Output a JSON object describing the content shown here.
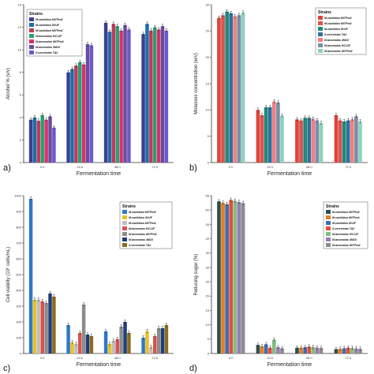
{
  "chart_data": [
    {
      "panel_label": "a)",
      "type": "bar",
      "xlabel": "Fermentation time",
      "ylabel": "Alcohol % (v/v)",
      "ylim": [
        0,
        14
      ],
      "yticks": [
        0,
        2,
        4,
        6,
        8,
        10,
        12,
        14
      ],
      "categories": [
        "0 h",
        "24 h",
        "48 h",
        "72 h"
      ],
      "legend_title": "Strains",
      "legend_position": "top-left",
      "series": [
        {
          "name": "M.caribbica MiTPm3",
          "color": "#3c3f8f",
          "values": [
            3.8,
            8.0,
            12.4,
            11.4
          ]
        },
        {
          "name": "M.caribbica SHJF",
          "color": "#1b6ea8",
          "values": [
            4.0,
            8.3,
            11.6,
            12.3
          ]
        },
        {
          "name": "M.caribbica MiTPm4",
          "color": "#c0395a",
          "values": [
            3.7,
            8.6,
            12.3,
            11.7
          ]
        },
        {
          "name": "W.anomalus HCJJF",
          "color": "#2e9e6e",
          "values": [
            4.2,
            8.9,
            12.1,
            12.0
          ]
        },
        {
          "name": "W.anomalus MiTPm2",
          "color": "#d6336c",
          "values": [
            3.8,
            8.7,
            11.7,
            11.8
          ]
        },
        {
          "name": "W.anomalus 4M10",
          "color": "#6a4c9c",
          "values": [
            4.1,
            10.5,
            12.2,
            12.1
          ]
        },
        {
          "name": "S.cerevisiae TA2",
          "color": "#6a5acd",
          "values": [
            3.1,
            10.4,
            11.8,
            11.7
          ]
        }
      ]
    },
    {
      "panel_label": "b)",
      "type": "bar",
      "xlabel": "Fermentation time",
      "ylabel": "Molasses concentration (w/v)",
      "ylim": [
        0,
        30
      ],
      "yticks": [
        0,
        5,
        10,
        15,
        20,
        25,
        30
      ],
      "categories": [
        "0 h",
        "24 h",
        "48 h",
        "72 h"
      ],
      "legend_title": "Strains",
      "legend_position": "top-right",
      "series": [
        {
          "name": "M.caribbica MiTPm3",
          "color": "#e0453a",
          "values": [
            27.5,
            10.0,
            8.2,
            9.0
          ]
        },
        {
          "name": "M.caribbica MiTPm4",
          "color": "#d9534f",
          "values": [
            28.0,
            9.0,
            8.0,
            8.0
          ]
        },
        {
          "name": "M.caribbica SHJF",
          "color": "#1f8a7a",
          "values": [
            28.7,
            10.5,
            8.5,
            7.8
          ]
        },
        {
          "name": "S.cerevisiae TA2",
          "color": "#2f6f9f",
          "values": [
            28.4,
            10.5,
            8.5,
            8.0
          ]
        },
        {
          "name": "W.anomalus 4M10",
          "color": "#f08080",
          "values": [
            27.8,
            11.6,
            8.3,
            8.2
          ]
        },
        {
          "name": "W.anomalus HCJJF",
          "color": "#7a8fa8",
          "values": [
            28.0,
            11.4,
            8.0,
            8.8
          ]
        },
        {
          "name": "W.anomalus MiTPm2",
          "color": "#8fd1c2",
          "values": [
            28.5,
            8.9,
            7.5,
            7.8
          ]
        }
      ]
    },
    {
      "panel_label": "c)",
      "type": "bar",
      "xlabel": "Fermentation time",
      "ylabel": "Cell viability (10⁶ cells/mL)",
      "ylim": [
        0,
        1000
      ],
      "yticks": [
        0,
        100,
        200,
        300,
        400,
        500,
        600,
        700,
        800,
        900,
        1000
      ],
      "categories": [
        "0 h",
        "24 h",
        "48 h",
        "72 h"
      ],
      "legend_title": "Strains",
      "legend_position": "top-right",
      "series": [
        {
          "name": "M.caribbica MiTPm3",
          "color": "#2e78c7",
          "values": [
            980,
            180,
            140,
            100
          ]
        },
        {
          "name": "M.caribbica SHJF",
          "color": "#e6c229",
          "values": [
            340,
            70,
            60,
            140
          ]
        },
        {
          "name": "M.caribbica MiTPm4",
          "color": "#bfbfbf",
          "values": [
            340,
            60,
            80,
            40
          ]
        },
        {
          "name": "W.anomalus HCJJF",
          "color": "#d9534f",
          "values": [
            330,
            130,
            90,
            110
          ]
        },
        {
          "name": "W.anomalus MiTPm2",
          "color": "#8c8c8c",
          "values": [
            320,
            310,
            170,
            160
          ]
        },
        {
          "name": "W.anomalus 4M10",
          "color": "#1f3d7a",
          "values": [
            380,
            120,
            200,
            160
          ]
        },
        {
          "name": "S.cerevisiae TA2",
          "color": "#8a6d1e",
          "values": [
            360,
            110,
            130,
            180
          ]
        }
      ]
    },
    {
      "panel_label": "d)",
      "type": "bar",
      "xlabel": "Fermentation time",
      "ylabel": "Reducing sugar (%)",
      "ylim": [
        0,
        55
      ],
      "yticks": [
        0,
        5,
        10,
        15,
        20,
        25,
        30,
        35,
        40,
        45,
        50,
        55
      ],
      "categories": [
        "0 h",
        "24 h",
        "48 h",
        "72 h"
      ],
      "legend_title": "Strains",
      "legend_position": "top-right",
      "series": [
        {
          "name": "M.caribbica MiTPm3",
          "color": "#2f4f4f",
          "values": [
            53.0,
            3.0,
            2.0,
            1.5
          ]
        },
        {
          "name": "M.caribbica MiTPm4",
          "color": "#e67e22",
          "values": [
            52.5,
            2.5,
            2.0,
            1.6
          ]
        },
        {
          "name": "M.caribbica SHJF",
          "color": "#3a6fb0",
          "values": [
            52.0,
            3.2,
            2.2,
            1.8
          ]
        },
        {
          "name": "S.cerevisiae TA2",
          "color": "#e74c3c",
          "values": [
            53.5,
            2.0,
            2.4,
            2.0
          ]
        },
        {
          "name": "W.anomalus HCJJF",
          "color": "#7fbf7f",
          "values": [
            53.2,
            4.8,
            2.2,
            1.9
          ]
        },
        {
          "name": "W.anomalus 4M10",
          "color": "#9b7bb5",
          "values": [
            52.8,
            2.2,
            2.0,
            1.7
          ]
        },
        {
          "name": "W.anomalus MiTPm2",
          "color": "#8c8c8c",
          "values": [
            52.4,
            1.8,
            1.9,
            1.6
          ]
        }
      ]
    }
  ]
}
